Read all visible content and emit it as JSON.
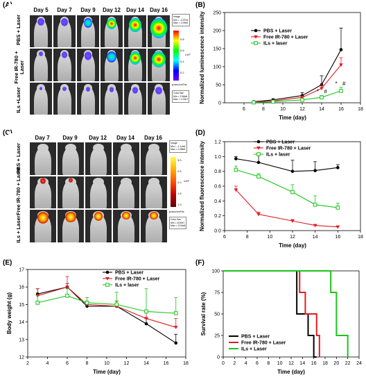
{
  "panels": {
    "A": "(A)",
    "B": "(B)",
    "C": "(C)",
    "D": "(D)",
    "E": "(E)",
    "F": "(F)"
  },
  "panel_A": {
    "days": [
      "Day 5",
      "Day 7",
      "Day 9",
      "Day 12",
      "Day 14",
      "Day 16"
    ],
    "rows": [
      "PBS + Laser",
      "Free IR-780 + Laser",
      "ILs +Laser"
    ],
    "colorbar_ticks": [
      "0.8",
      "0.6",
      "0.4",
      "0.2"
    ],
    "colorbar_unit": "x10⁷",
    "note_top": "Image\nMin = -4.07e4\nMax = 2.09e6",
    "note_bottom": "Color Bar\nMin = 2.56e6\nMax = 1.00e7",
    "unit_text": "p/sec/cm²/sr"
  },
  "panel_C": {
    "days": [
      "Day 7",
      "Day 9",
      "Day 12",
      "Day 14",
      "Day 16"
    ],
    "rows": [
      "PBS + Laser",
      "Free IR-780 + Laser",
      "ILs + Laser"
    ],
    "colorbar_ticks": [
      "3.0",
      "2.5",
      "2.0",
      "1.5",
      "1.0"
    ],
    "colorbar_unit": "x10⁸",
    "note_top": "Image\nMin = -1.14e6\nMax = 4.38e8",
    "note_bottom": "Color Bar\nMin = 8.00e7\nMax = 3.00e8",
    "unit_text": "p/sec/cm²/sr"
  },
  "colors": {
    "pbs": "#000000",
    "free": "#e11b22",
    "ils": "#19c419"
  },
  "chart_data": [
    {
      "id": "B",
      "type": "line",
      "xlabel": "Time (day)",
      "ylabel": "Normalized luminescence intensity",
      "xlim": [
        4,
        18
      ],
      "ylim": [
        0,
        250
      ],
      "xticks": [
        6,
        8,
        10,
        12,
        14,
        16,
        18
      ],
      "yticks": [
        0,
        50,
        100,
        150,
        200,
        250
      ],
      "legend": "top-left",
      "series": [
        {
          "name": "PBS + Laser",
          "marker": "circle",
          "x": [
            7,
            9,
            12,
            14,
            16
          ],
          "y": [
            3,
            8,
            20,
            50,
            147
          ],
          "err": [
            2,
            3,
            8,
            25,
            60
          ]
        },
        {
          "name": "Free IR-780 + Laser",
          "marker": "triangle-down",
          "x": [
            7,
            9,
            12,
            14,
            16
          ],
          "y": [
            2,
            5,
            15,
            40,
            105
          ],
          "err": [
            1,
            2,
            4,
            10,
            20
          ]
        },
        {
          "name": "ILs + laser",
          "marker": "square",
          "x": [
            7,
            9,
            12,
            14,
            16
          ],
          "y": [
            1,
            3,
            8,
            15,
            33
          ],
          "err": [
            1,
            1,
            2,
            5,
            10
          ]
        }
      ],
      "annotations": [
        {
          "text": "*",
          "x": 13.6,
          "y": 26
        },
        {
          "text": "#",
          "x": 14.4,
          "y": 26
        },
        {
          "text": "*",
          "x": 15.5,
          "y": 48
        },
        {
          "text": "#",
          "x": 16.3,
          "y": 48
        }
      ]
    },
    {
      "id": "D",
      "type": "line",
      "xlabel": "Time (day)",
      "ylabel": "Normalized fluorescence intensity",
      "xlim": [
        6,
        18
      ],
      "ylim": [
        0,
        1.2
      ],
      "xticks": [
        6,
        8,
        10,
        12,
        14,
        16,
        18
      ],
      "yticks": [
        0.0,
        0.2,
        0.4,
        0.6,
        0.8,
        1.0,
        1.2
      ],
      "legend": "top-right",
      "series": [
        {
          "name": "PBS + Laser",
          "marker": "circle",
          "x": [
            7,
            9,
            12,
            14,
            16
          ],
          "y": [
            0.97,
            0.92,
            0.8,
            0.81,
            0.85
          ],
          "err": [
            0.03,
            0.1,
            0.15,
            0.12,
            0.04
          ]
        },
        {
          "name": "Free IR-780 + Laser",
          "marker": "triangle-down",
          "x": [
            7,
            9,
            12,
            14,
            16
          ],
          "y": [
            0.55,
            0.22,
            0.13,
            0.07,
            0.05
          ],
          "err": [
            0.05,
            0.03,
            0.02,
            0.01,
            0.01
          ]
        },
        {
          "name": "ILs + laser",
          "marker": "square",
          "x": [
            7,
            9,
            12,
            14,
            16
          ],
          "y": [
            0.82,
            0.73,
            0.52,
            0.35,
            0.31
          ],
          "err": [
            0.05,
            0.04,
            0.1,
            0.12,
            0.06
          ]
        }
      ]
    },
    {
      "id": "E",
      "type": "line",
      "xlabel": "Time (day)",
      "ylabel": "Body weight (g)",
      "xlim": [
        2,
        18
      ],
      "ylim": [
        12,
        17
      ],
      "xticks": [
        2,
        4,
        6,
        8,
        10,
        12,
        14,
        16,
        18
      ],
      "yticks": [
        12,
        13,
        14,
        15,
        16,
        17
      ],
      "legend": "top-right",
      "series": [
        {
          "name": "PBS + Laser",
          "marker": "circle",
          "x": [
            3,
            6,
            8,
            11,
            14,
            17
          ],
          "y": [
            15.6,
            16.0,
            14.9,
            14.9,
            13.9,
            12.8
          ],
          "err": [
            0.3,
            0.2,
            0.2,
            0.3,
            0.3,
            0.5
          ]
        },
        {
          "name": "Free IR-780 + Laser",
          "marker": "triangle-down",
          "x": [
            3,
            6,
            8,
            11,
            14,
            17
          ],
          "y": [
            15.5,
            16.0,
            15.0,
            14.9,
            14.2,
            13.7
          ],
          "err": [
            0.4,
            0.6,
            0.2,
            0.3,
            0.4,
            0.5
          ]
        },
        {
          "name": "ILs + laser",
          "marker": "square",
          "x": [
            3,
            6,
            8,
            11,
            14,
            17
          ],
          "y": [
            15.1,
            15.5,
            15.1,
            15.0,
            14.6,
            14.5
          ],
          "err": [
            0.4,
            0.4,
            0.3,
            0.7,
            1.3,
            0.9
          ]
        }
      ]
    },
    {
      "id": "F",
      "type": "line",
      "step": true,
      "xlabel": "Time (day)",
      "ylabel": "Survival rate (%)",
      "xlim": [
        0,
        24
      ],
      "ylim": [
        0,
        100
      ],
      "xticks": [
        0,
        2,
        4,
        6,
        8,
        10,
        12,
        14,
        16,
        18,
        20,
        22,
        24
      ],
      "yticks": [
        0,
        25,
        50,
        75,
        100
      ],
      "legend": "bottom-left",
      "series": [
        {
          "name": "PBS + Laser",
          "x": [
            0,
            13,
            13,
            15,
            15,
            16,
            16,
            16.5,
            16.5
          ],
          "y": [
            100,
            100,
            50,
            50,
            25,
            25,
            0,
            0,
            0
          ]
        },
        {
          "name": "Free IR-780 + Laser",
          "x": [
            0,
            13.5,
            13.5,
            14.5,
            14.5,
            16.5,
            16.5,
            17,
            17
          ],
          "y": [
            100,
            100,
            75,
            75,
            50,
            50,
            25,
            25,
            0
          ]
        },
        {
          "name": "ILs + Laser",
          "x": [
            0,
            19,
            19,
            20,
            20,
            22,
            22
          ],
          "y": [
            100,
            100,
            75,
            75,
            25,
            25,
            0
          ]
        }
      ]
    }
  ]
}
